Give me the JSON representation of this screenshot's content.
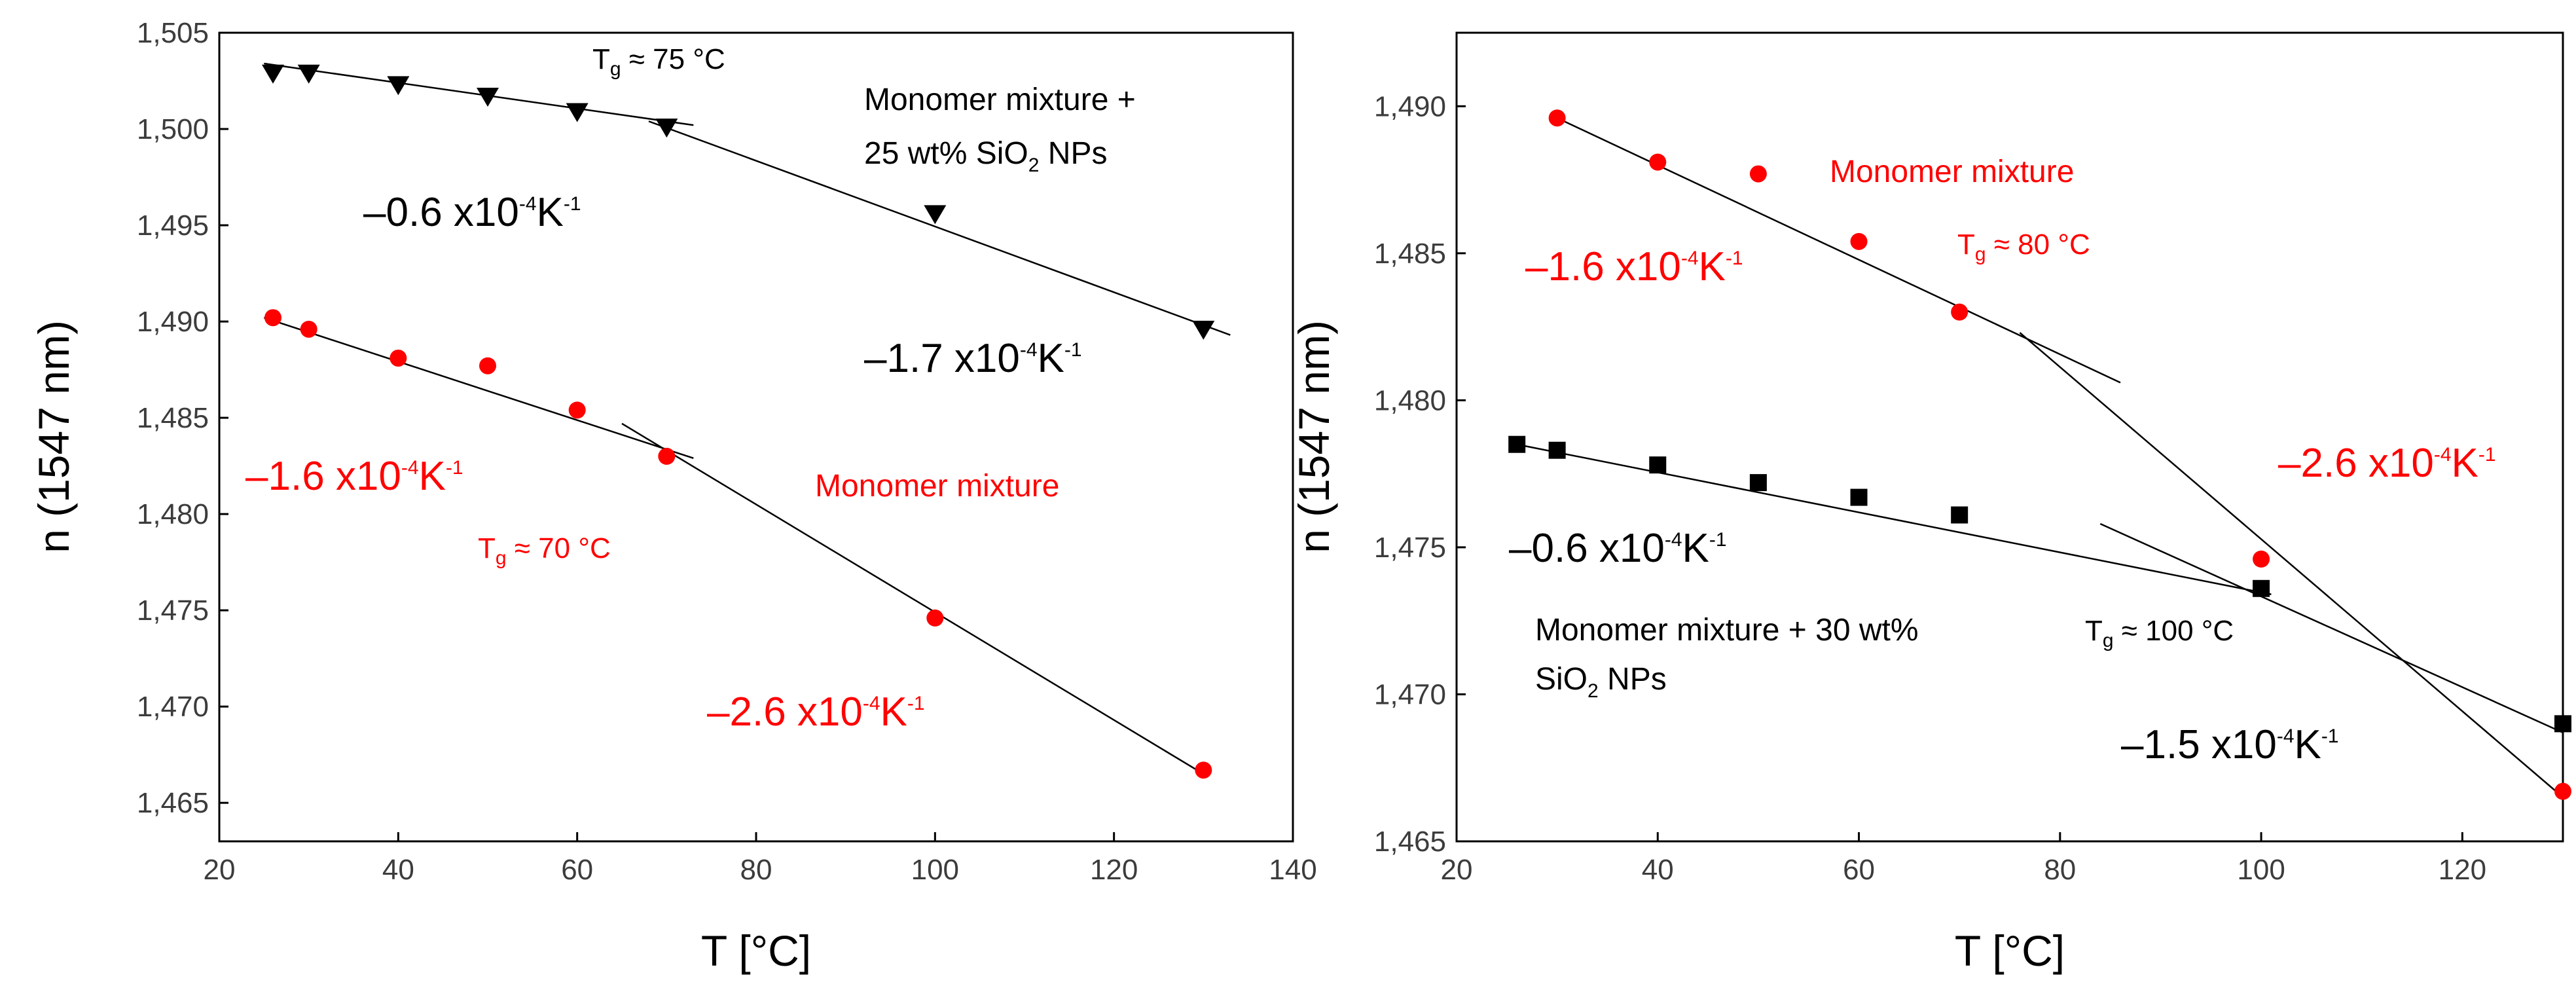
{
  "colors": {
    "red": "#ff0000",
    "black": "#000000",
    "axis": "#000000"
  },
  "chart_data": [
    {
      "type": "scatter",
      "xlabel": "T [°C]",
      "ylabel": "n (1547 nm)",
      "xlim": [
        20,
        140
      ],
      "ylim": [
        1.463,
        1.505
      ],
      "xticks": [
        20,
        40,
        60,
        80,
        100,
        120,
        140
      ],
      "yticks": [
        1.465,
        1.47,
        1.475,
        1.48,
        1.485,
        1.49,
        1.495,
        1.5,
        1.505
      ],
      "ytick_labels": [
        "1,465",
        "1,470",
        "1,475",
        "1,480",
        "1,485",
        "1,490",
        "1,495",
        "1,500",
        "1,505"
      ],
      "series": [
        {
          "name": "Monomer mixture + 25 wt% SiO2 NPs",
          "marker": "triangle-down",
          "color": "#000000",
          "x": [
            26,
            30,
            40,
            50,
            60,
            70,
            100,
            130
          ],
          "y": [
            1.5029,
            1.5029,
            1.5023,
            1.5017,
            1.5009,
            1.5001,
            1.4956,
            1.4896
          ]
        },
        {
          "name": "Monomer mixture",
          "marker": "circle",
          "color": "#ff0000",
          "x": [
            26,
            30,
            40,
            50,
            60,
            70,
            100,
            130
          ],
          "y": [
            1.4902,
            1.4896,
            1.4881,
            1.4877,
            1.4854,
            1.483,
            1.4746,
            1.4667
          ]
        }
      ],
      "fit_lines": [
        {
          "x": [
            25,
            73
          ],
          "y": [
            1.5034,
            1.5002
          ]
        },
        {
          "x": [
            68,
            133
          ],
          "y": [
            1.5004,
            1.4893
          ]
        },
        {
          "x": [
            25,
            73
          ],
          "y": [
            1.4902,
            1.4829
          ]
        },
        {
          "x": [
            65,
            130
          ],
          "y": [
            1.4847,
            1.4665
          ]
        }
      ],
      "annotations": {
        "tg_top": {
          "prefix": "T",
          "sub": "g",
          "suffix": " ≈ 75 °C"
        },
        "label_top_line1": "Monomer mixture +",
        "label_top_line2_a": "25 wt% SiO",
        "label_top_line2_sub": "2",
        "label_top_line2_b": " NPs",
        "slope_top_left": {
          "base": "–0.6 x10",
          "exp": "-4",
          "unit": "K",
          "unit_exp": "-1"
        },
        "slope_top_right": {
          "base": "–1.7 x10",
          "exp": "-4",
          "unit": "K",
          "unit_exp": "-1"
        },
        "slope_red_left": {
          "base": "–1.6 x10",
          "exp": "-4",
          "unit": "K",
          "unit_exp": "-1"
        },
        "label_red": "Monomer mixture",
        "tg_red": {
          "prefix": "T",
          "sub": "g",
          "suffix": " ≈ 70 °C"
        },
        "slope_red_right": {
          "base": "–2.6 x10",
          "exp": "-4",
          "unit": "K",
          "unit_exp": "-1"
        }
      }
    },
    {
      "type": "scatter",
      "xlabel": "T [°C]",
      "ylabel": "n (1547 nm)",
      "xlim": [
        20,
        130
      ],
      "ylim": [
        1.465,
        1.4925
      ],
      "xticks": [
        20,
        40,
        60,
        80,
        100,
        120
      ],
      "yticks": [
        1.465,
        1.47,
        1.475,
        1.48,
        1.485,
        1.49
      ],
      "ytick_labels": [
        "1,465",
        "1,470",
        "1,475",
        "1,480",
        "1,485",
        "1,490"
      ],
      "series": [
        {
          "name": "Monomer mixture",
          "marker": "circle",
          "color": "#ff0000",
          "x": [
            30,
            40,
            50,
            60,
            70,
            100,
            130
          ],
          "y": [
            1.4896,
            1.4881,
            1.4877,
            1.4854,
            1.483,
            1.4746,
            1.4667
          ]
        },
        {
          "name": "Monomer mixture + 30 wt% SiO2 NPs",
          "marker": "square",
          "color": "#000000",
          "x": [
            26,
            30,
            40,
            50,
            60,
            70,
            100,
            130
          ],
          "y": [
            1.4785,
            1.4783,
            1.4778,
            1.4772,
            1.4767,
            1.4761,
            1.4736,
            1.469
          ]
        }
      ],
      "fit_lines": [
        {
          "x": [
            30,
            86
          ],
          "y": [
            1.4896,
            1.4806
          ]
        },
        {
          "x": [
            76,
            130
          ],
          "y": [
            1.4823,
            1.4665
          ]
        },
        {
          "x": [
            26,
            101
          ],
          "y": [
            1.4785,
            1.4734
          ]
        },
        {
          "x": [
            84,
            130
          ],
          "y": [
            1.4758,
            1.4687
          ]
        }
      ],
      "annotations": {
        "label_red": "Monomer mixture",
        "slope_red_left": {
          "base": "–1.6 x10",
          "exp": "-4",
          "unit": "K",
          "unit_exp": "-1"
        },
        "tg_red": {
          "prefix": "T",
          "sub": "g",
          "suffix": " ≈ 80 °C"
        },
        "slope_red_right": {
          "base": "–2.6 x10",
          "exp": "-4",
          "unit": "K",
          "unit_exp": "-1"
        },
        "slope_black_left": {
          "base": "–0.6 x10",
          "exp": "-4",
          "unit": "K",
          "unit_exp": "-1"
        },
        "label_black_line1": "Monomer mixture + 30 wt%",
        "label_black_line2_a": "SiO",
        "label_black_line2_sub": "2",
        "label_black_line2_b": " NPs",
        "tg_black": {
          "prefix": "T",
          "sub": "g",
          "suffix": " ≈ 100 °C"
        },
        "slope_black_right": {
          "base": "–1.5 x10",
          "exp": "-4",
          "unit": "K",
          "unit_exp": "-1"
        }
      }
    }
  ]
}
